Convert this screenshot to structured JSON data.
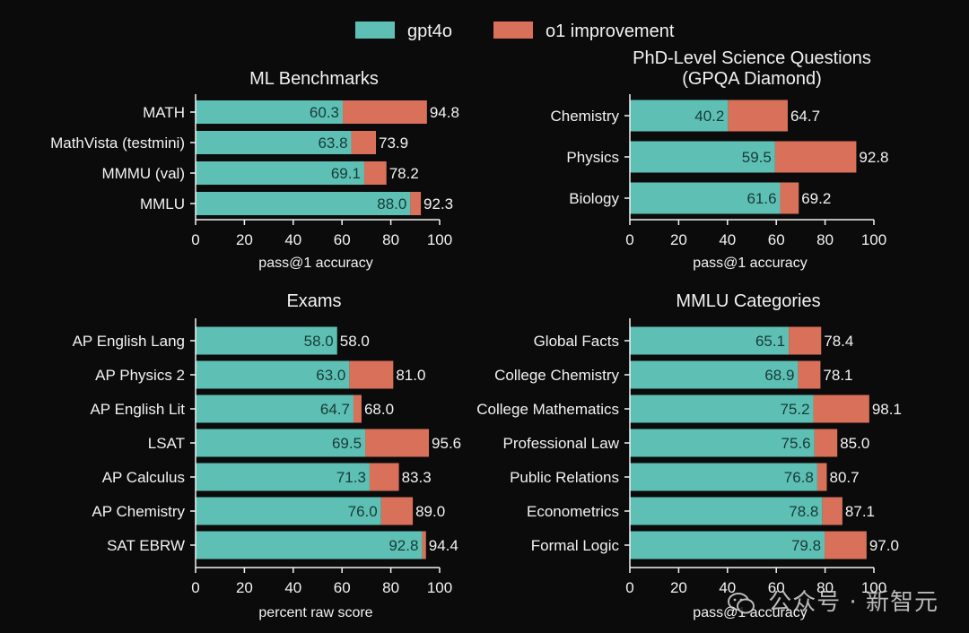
{
  "colors": {
    "gpt4o": "#5ec0b4",
    "o1": "#d9715a",
    "bg": "#0b0b0b",
    "text": "#f2f2f2"
  },
  "legend": {
    "gpt4o": "gpt4o",
    "o1": "o1 improvement"
  },
  "watermark": "公众号 · 新智元",
  "chart_data": [
    {
      "type": "bar",
      "id": "ml",
      "title": "ML Benchmarks",
      "xlabel": "pass@1 accuracy",
      "xlim": [
        0,
        100
      ],
      "xticks": [
        0,
        20,
        40,
        60,
        80,
        100
      ],
      "categories": [
        "MATH",
        "MathVista (testmini)",
        "MMMU (val)",
        "MMLU"
      ],
      "series": [
        {
          "name": "gpt4o",
          "values": [
            60.3,
            63.8,
            69.1,
            88.0
          ],
          "labels": [
            "60.3",
            "63.8",
            "69.1",
            "88.0"
          ]
        },
        {
          "name": "o1 improvement",
          "values": [
            94.8,
            73.9,
            78.2,
            92.3
          ],
          "labels": [
            "94.8",
            "73.9",
            "78.2",
            "92.3"
          ]
        }
      ]
    },
    {
      "type": "bar",
      "id": "gpqa",
      "title": [
        "PhD-Level Science Questions",
        "(GPQA Diamond)"
      ],
      "xlabel": "pass@1 accuracy",
      "xlim": [
        0,
        100
      ],
      "xticks": [
        0,
        20,
        40,
        60,
        80,
        100
      ],
      "categories": [
        "Chemistry",
        "Physics",
        "Biology"
      ],
      "series": [
        {
          "name": "gpt4o",
          "values": [
            40.2,
            59.5,
            61.6
          ],
          "labels": [
            "40.2",
            "59.5",
            "61.6"
          ]
        },
        {
          "name": "o1 improvement",
          "values": [
            64.7,
            92.8,
            69.2
          ],
          "labels": [
            "64.7",
            "92.8",
            "69.2"
          ]
        }
      ]
    },
    {
      "type": "bar",
      "id": "exams",
      "title": "Exams",
      "xlabel": "percent raw score",
      "xlim": [
        0,
        100
      ],
      "xticks": [
        0,
        20,
        40,
        60,
        80,
        100
      ],
      "categories": [
        "AP English Lang",
        "AP Physics 2",
        "AP English Lit",
        "LSAT",
        "AP Calculus",
        "AP Chemistry",
        "SAT EBRW"
      ],
      "series": [
        {
          "name": "gpt4o",
          "values": [
            58.0,
            63.0,
            64.7,
            69.5,
            71.3,
            76.0,
            92.8
          ],
          "labels": [
            "58.0",
            "63.0",
            "64.7",
            "69.5",
            "71.3",
            "76.0",
            "92.8"
          ]
        },
        {
          "name": "o1 improvement",
          "values": [
            58.0,
            81.0,
            68.0,
            95.6,
            83.3,
            89.0,
            94.4
          ],
          "labels": [
            "58.0",
            "81.0",
            "68.0",
            "95.6",
            "83.3",
            "89.0",
            "94.4"
          ]
        }
      ]
    },
    {
      "type": "bar",
      "id": "mmlu",
      "title": "MMLU Categories",
      "xlabel": "pass@1 accuracy",
      "xlim": [
        0,
        100
      ],
      "xticks": [
        0,
        20,
        40,
        60,
        80,
        100
      ],
      "categories": [
        "Global Facts",
        "College Chemistry",
        "College Mathematics",
        "Professional Law",
        "Public Relations",
        "Econometrics",
        "Formal Logic"
      ],
      "series": [
        {
          "name": "gpt4o",
          "values": [
            65.1,
            68.9,
            75.2,
            75.6,
            76.8,
            78.8,
            79.8
          ],
          "labels": [
            "65.1",
            "68.9",
            "75.2",
            "75.6",
            "76.8",
            "78.8",
            "79.8"
          ]
        },
        {
          "name": "o1 improvement",
          "values": [
            78.4,
            78.1,
            98.1,
            85.0,
            80.7,
            87.1,
            97.0
          ],
          "labels": [
            "78.4",
            "78.1",
            "98.1",
            "85.0",
            "80.7",
            "87.1",
            "97.0"
          ]
        }
      ]
    }
  ]
}
